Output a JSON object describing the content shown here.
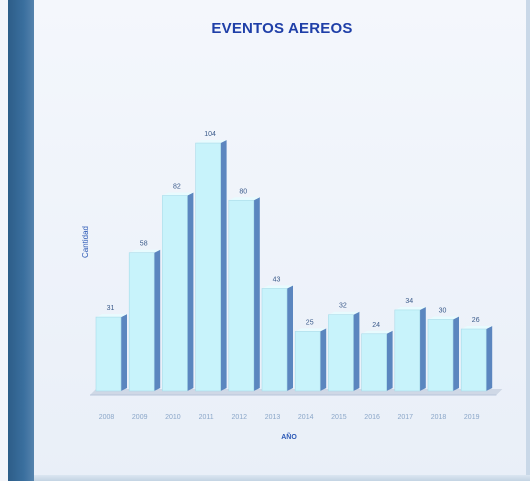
{
  "chart_data": {
    "type": "bar",
    "title": "EVENTOS AEREOS",
    "xlabel": "AÑO",
    "ylabel": "Cantidad",
    "categories": [
      "2008",
      "2009",
      "2010",
      "2011",
      "2012",
      "2013",
      "2014",
      "2015",
      "2016",
      "2017",
      "2018",
      "2019"
    ],
    "values": [
      31,
      58,
      82,
      104,
      80,
      43,
      25,
      32,
      24,
      34,
      30,
      26
    ],
    "ylim": [
      0,
      110
    ],
    "grid": false,
    "legend": "none",
    "colors": {
      "bar_front": "#c8f3fb",
      "bar_side": "#5b86bf",
      "bar_top": "#e8fbfe",
      "floor": "#cfd8e6",
      "title": "#1f3fa8"
    }
  }
}
